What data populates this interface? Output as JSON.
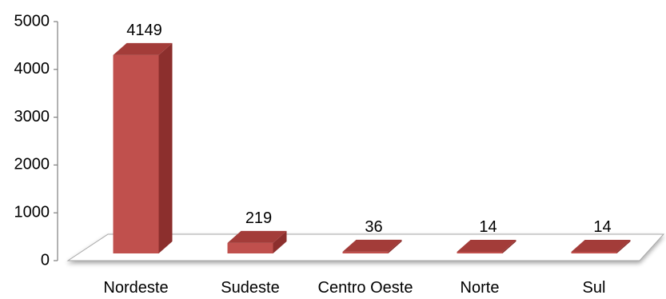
{
  "chart_data": {
    "type": "bar",
    "categories": [
      "Nordeste",
      "Sudeste",
      "Centro Oeste",
      "Norte",
      "Sul"
    ],
    "values": [
      4149,
      219,
      36,
      14,
      14
    ],
    "data_labels": [
      "4149",
      "219",
      "36",
      "14",
      "14"
    ],
    "yticks": [
      "0",
      "1000",
      "2000",
      "3000",
      "4000",
      "5000"
    ],
    "ylim": [
      0,
      5000
    ],
    "grid": false,
    "legend": "none",
    "colors": {
      "bar_front": "#c0504d",
      "bar_side": "#8c2f2d",
      "bar_top": "#a33c39",
      "floor": "#ffffff",
      "floor_edge": "#a6a6a6",
      "axis": "#7f7f7f"
    }
  }
}
